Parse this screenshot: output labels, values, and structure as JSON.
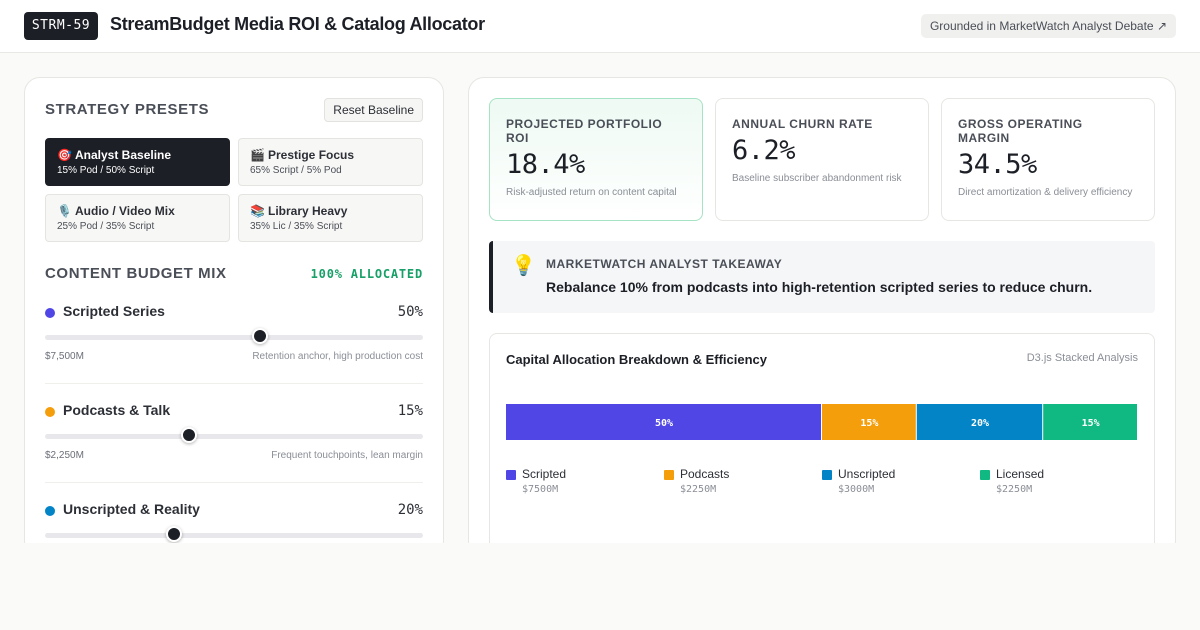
{
  "header": {
    "badge": "STRM-59",
    "title": "StreamBudget Media ROI & Catalog Allocator",
    "source_chip": "Grounded in MarketWatch Analyst Debate ↗"
  },
  "presets": {
    "title": "STRATEGY PRESETS",
    "reset_label": "Reset Baseline",
    "items": [
      {
        "icon": "🎯",
        "icon_name": "target-icon",
        "label": "Analyst Baseline",
        "sub": "15% Pod / 50% Script",
        "active": true
      },
      {
        "icon": "🎬",
        "icon_name": "clapperboard-icon",
        "label": "Prestige Focus",
        "sub": "65% Script / 5% Pod",
        "active": false
      },
      {
        "icon": "🎙️",
        "icon_name": "microphone-icon",
        "label": "Audio / Video Mix",
        "sub": "25% Pod / 35% Script",
        "active": false
      },
      {
        "icon": "📚",
        "icon_name": "books-icon",
        "label": "Library Heavy",
        "sub": "35% Lic / 35% Script",
        "active": false
      }
    ]
  },
  "budget_mix": {
    "title": "CONTENT BUDGET MIX",
    "allocated": "100% ALLOCATED",
    "sliders": [
      {
        "label": "Scripted Series",
        "pct_label": "50%",
        "value": 0.57,
        "color": "#4f46e5",
        "amount": "$7,500M",
        "note": "Retention anchor, high production cost"
      },
      {
        "label": "Podcasts & Talk",
        "pct_label": "15%",
        "value": 0.38,
        "color": "#f59e0b",
        "amount": "$2,250M",
        "note": "Frequent touchpoints, lean margin"
      },
      {
        "label": "Unscripted & Reality",
        "pct_label": "20%",
        "value": 0.34,
        "color": "#0284c7",
        "amount": "",
        "note": ""
      }
    ]
  },
  "kpis": [
    {
      "label": "PROJECTED PORTFOLIO ROI",
      "value": "18.4%",
      "desc": "Risk-adjusted return on content capital",
      "highlight": true
    },
    {
      "label": "ANNUAL CHURN RATE",
      "value": "6.2%",
      "desc": "Baseline subscriber abandonment risk",
      "highlight": false
    },
    {
      "label": "GROSS OPERATING MARGIN",
      "value": "34.5%",
      "desc": "Direct amortization & delivery efficiency",
      "highlight": false
    }
  ],
  "takeaway": {
    "icon_name": "lightbulb-icon",
    "label": "MARKETWATCH ANALYST TAKEAWAY",
    "text": "Rebalance 10% from podcasts into high-retention scripted series to reduce churn."
  },
  "chart": {
    "title": "Capital Allocation Breakdown & Efficiency",
    "tag": "D3.js Stacked Analysis"
  },
  "chart_data": {
    "type": "bar",
    "categories": [
      "Scripted",
      "Podcasts",
      "Unscripted",
      "Licensed"
    ],
    "values": [
      50,
      15,
      20,
      15
    ],
    "value_labels": [
      "50%",
      "15%",
      "20%",
      "15%"
    ],
    "amounts": [
      "$7500M",
      "$2250M",
      "$3000M",
      "$2250M"
    ],
    "colors": [
      "#4f46e5",
      "#f59e0b",
      "#0284c7",
      "#10b981"
    ],
    "stacked": true,
    "orientation": "horizontal",
    "legend": "bottom"
  }
}
